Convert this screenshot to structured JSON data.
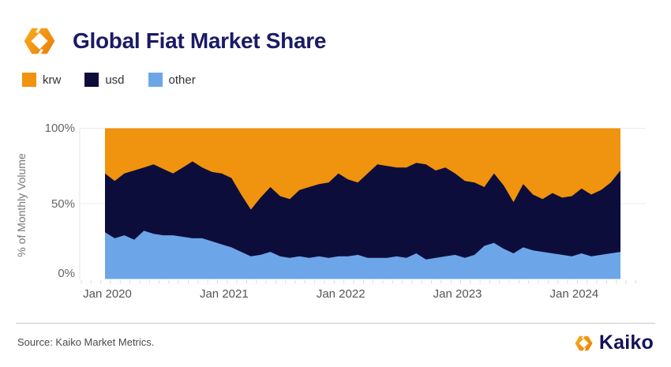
{
  "header": {
    "title": "Global Fiat Market Share"
  },
  "footer": {
    "source": "Source: Kaiko Market Metrics.",
    "brand": "Kaiko"
  },
  "colors": {
    "title_navy": "#1A1A66",
    "axis_text": "#666666",
    "gridline": "#ECECEC",
    "axis_line": "#E4E4E4",
    "tick": "#D9D9D9",
    "krw_orange": "#F0930E",
    "usd_navy": "#0D0D3C",
    "other_blue": "#6CA6E8"
  },
  "chart_data": {
    "type": "area",
    "stacked": true,
    "title": "Global Fiat Market Share",
    "xlabel": "",
    "ylabel": "% of Monthly Volume",
    "ylim": [
      0,
      100
    ],
    "grid": "horizontal",
    "legend_position": "top-left",
    "frequency": "monthly",
    "x_tick_labels": [
      "Jan 2020",
      "Jan 2021",
      "Jan 2022",
      "Jan 2023",
      "Jan 2024"
    ],
    "x_tick_month_indices": [
      0,
      12,
      24,
      36,
      48
    ],
    "y_tick_labels": [
      "0%",
      "50%",
      "100%"
    ],
    "months": [
      "2020-01",
      "2020-02",
      "2020-03",
      "2020-04",
      "2020-05",
      "2020-06",
      "2020-07",
      "2020-08",
      "2020-09",
      "2020-10",
      "2020-11",
      "2020-12",
      "2021-01",
      "2021-02",
      "2021-03",
      "2021-04",
      "2021-05",
      "2021-06",
      "2021-07",
      "2021-08",
      "2021-09",
      "2021-10",
      "2021-11",
      "2021-12",
      "2022-01",
      "2022-02",
      "2022-03",
      "2022-04",
      "2022-05",
      "2022-06",
      "2022-07",
      "2022-08",
      "2022-09",
      "2022-10",
      "2022-11",
      "2022-12",
      "2023-01",
      "2023-02",
      "2023-03",
      "2023-04",
      "2023-05",
      "2023-06",
      "2023-07",
      "2023-08",
      "2023-09",
      "2023-10",
      "2023-11",
      "2023-12",
      "2024-01",
      "2024-02",
      "2024-03",
      "2024-04",
      "2024-05",
      "2024-06"
    ],
    "series": [
      {
        "name": "krw",
        "color": "#F0930E",
        "values": [
          30,
          35,
          30,
          28,
          26,
          24,
          27,
          30,
          26,
          22,
          26,
          29,
          30,
          33,
          44,
          54,
          46,
          39,
          45,
          47,
          41,
          39,
          37,
          36,
          30,
          34,
          36,
          30,
          24,
          25,
          26,
          26,
          23,
          24,
          28,
          26,
          30,
          35,
          36,
          39,
          30,
          38,
          49,
          37,
          44,
          47,
          43,
          46,
          45,
          40,
          44,
          41,
          36,
          28
        ]
      },
      {
        "name": "usd",
        "color": "#0D0D3C",
        "values": [
          39,
          38,
          41,
          46,
          42,
          46,
          44,
          41,
          46,
          51,
          47,
          46,
          47,
          46,
          38,
          31,
          38,
          43,
          40,
          39,
          44,
          47,
          48,
          50,
          55,
          51,
          48,
          56,
          62,
          61,
          59,
          60,
          60,
          63,
          58,
          59,
          54,
          51,
          48,
          39,
          46,
          42,
          34,
          42,
          37,
          35,
          40,
          38,
          40,
          43,
          41,
          43,
          47,
          54
        ]
      },
      {
        "name": "other",
        "color": "#6CA6E8",
        "values": [
          31,
          27,
          29,
          26,
          32,
          30,
          29,
          29,
          28,
          27,
          27,
          25,
          23,
          21,
          18,
          15,
          16,
          18,
          15,
          14,
          15,
          14,
          15,
          14,
          15,
          15,
          16,
          14,
          14,
          14,
          15,
          14,
          17,
          13,
          14,
          15,
          16,
          14,
          16,
          22,
          24,
          20,
          17,
          21,
          19,
          18,
          17,
          16,
          15,
          17,
          15,
          16,
          17,
          18
        ]
      }
    ]
  }
}
